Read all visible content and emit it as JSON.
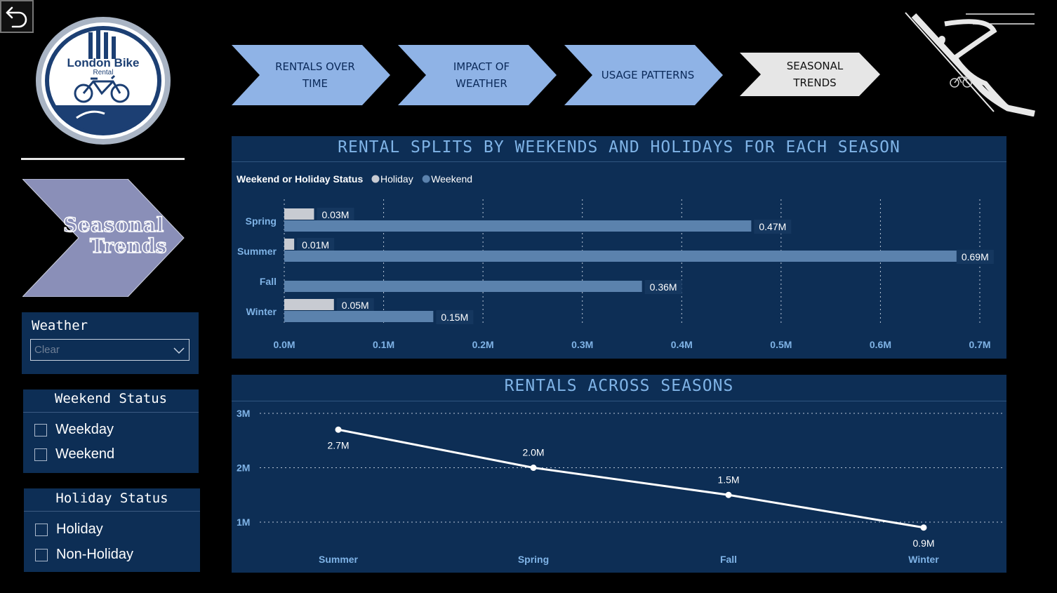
{
  "logo": {
    "line1": "London Bike",
    "line2": "Rental"
  },
  "nav": {
    "items": [
      {
        "label": "RENTALS OVER\nTIME",
        "active": false
      },
      {
        "label": "IMPACT OF\nWEATHER",
        "active": false
      },
      {
        "label": "USAGE PATTERNS",
        "active": false
      },
      {
        "label": "SEASONAL\nTRENDS",
        "active": true
      }
    ]
  },
  "page_banner": {
    "line1": "Seasonal",
    "line2": "Trends"
  },
  "slicers": {
    "weather": {
      "title": "Weather",
      "value": "Clear"
    },
    "weekend": {
      "title": "Weekend Status",
      "options": [
        "Weekday",
        "Weekend"
      ]
    },
    "holiday": {
      "title": "Holiday Status",
      "options": [
        "Holiday",
        "Non-Holiday"
      ]
    }
  },
  "colors": {
    "holiday": "#c8cbd2",
    "weekend": "#5b82ad",
    "panel": "#0d2e55",
    "axis_text": "#7fb3e6",
    "nav_chevron": "#8fb3e6",
    "nav_active": "#e6e6e6"
  },
  "chart_data": [
    {
      "type": "bar",
      "orientation": "horizontal",
      "title": "RENTAL SPLITS BY WEEKENDS AND HOLIDAYS FOR EACH SEASON",
      "legend_title": "Weekend or Holiday Status",
      "legend_position": "top-left",
      "categories": [
        "Spring",
        "Summer",
        "Fall",
        "Winter"
      ],
      "series": [
        {
          "name": "Holiday",
          "values": [
            0.03,
            0.01,
            0,
            0.05
          ],
          "labels": [
            "0.03M",
            "0.01M",
            "",
            "0.05M"
          ]
        },
        {
          "name": "Weekend",
          "values": [
            0.47,
            0.69,
            0.36,
            0.15
          ],
          "labels": [
            "0.47M",
            "0.69M",
            "0.36M",
            "0.15M"
          ]
        }
      ],
      "xlim": [
        0,
        0.7
      ],
      "xticks": [
        "0.0M",
        "0.1M",
        "0.2M",
        "0.3M",
        "0.4M",
        "0.5M",
        "0.6M",
        "0.7M"
      ],
      "grid": true
    },
    {
      "type": "line",
      "title": "RENTALS ACROSS SEASONS",
      "categories": [
        "Summer",
        "Spring",
        "Fall",
        "Winter"
      ],
      "values": [
        2.7,
        2.0,
        1.5,
        0.9
      ],
      "labels": [
        "2.7M",
        "2.0M",
        "1.5M",
        "0.9M"
      ],
      "yticks": [
        "1M",
        "2M",
        "3M"
      ],
      "grid": true
    }
  ]
}
